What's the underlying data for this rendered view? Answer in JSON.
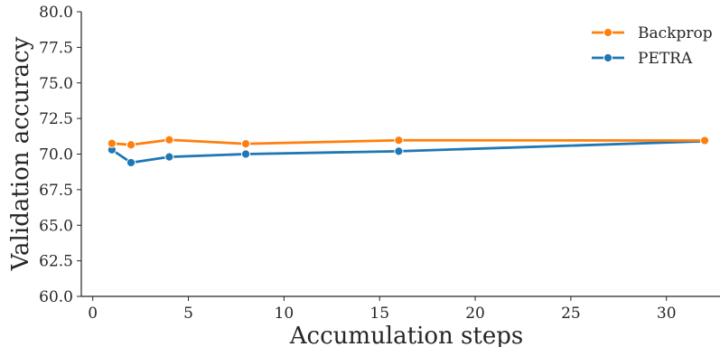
{
  "chart_data": {
    "type": "line",
    "xlabel": "Accumulation steps",
    "ylabel": "Validation accuracy",
    "xlim": [
      -0.6,
      32.8
    ],
    "ylim": [
      60.0,
      80.0
    ],
    "xticks": [
      0,
      5,
      10,
      15,
      20,
      25,
      30
    ],
    "xtick_labels": [
      "0",
      "5",
      "10",
      "15",
      "20",
      "25",
      "30"
    ],
    "yticks": [
      60.0,
      62.5,
      65.0,
      67.5,
      70.0,
      72.5,
      75.0,
      77.5,
      80.0
    ],
    "ytick_labels": [
      "60.0",
      "62.5",
      "65.0",
      "67.5",
      "70.0",
      "72.5",
      "75.0",
      "77.5",
      "80.0"
    ],
    "grid": false,
    "legend_position": "top-right",
    "x": [
      1,
      2,
      4,
      8,
      16,
      32
    ],
    "series": [
      {
        "name": "Backprop",
        "color": "#ff7f0e",
        "values": [
          70.75,
          70.65,
          71.0,
          70.72,
          70.97,
          70.95
        ]
      },
      {
        "name": "PETRA",
        "color": "#1f77b4",
        "values": [
          70.3,
          69.4,
          69.8,
          70.0,
          70.2,
          70.9
        ]
      }
    ]
  }
}
